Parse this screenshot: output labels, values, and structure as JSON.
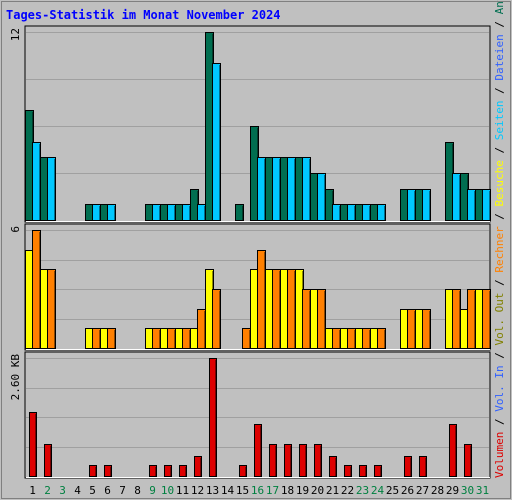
{
  "colors": {
    "background": "#c0c0c0",
    "grid": "#a0a0a0",
    "frame_dark": "#000000",
    "anfragen": "#006e50",
    "dateien": "#00c8ff",
    "seiten": "#00c8ff",
    "besuche": "#ffff00",
    "rechner": "#ff8000",
    "volumen": "#dd0000",
    "weekend_label": "#008040",
    "weekday_label": "#000000",
    "slash": "#000000",
    "vol_in": "#3060ff",
    "vol_out": "#808000"
  },
  "chart_data": {
    "type": "bar",
    "title": "Tages-Statistik im Monat November 2024",
    "categories": [
      "1",
      "2",
      "3",
      "4",
      "5",
      "6",
      "7",
      "8",
      "9",
      "10",
      "11",
      "12",
      "13",
      "14",
      "15",
      "16",
      "17",
      "18",
      "19",
      "20",
      "21",
      "22",
      "23",
      "24",
      "25",
      "26",
      "27",
      "28",
      "29",
      "30",
      "31"
    ],
    "weekend_days": [
      "2",
      "3",
      "9",
      "10",
      "16",
      "17",
      "23",
      "24",
      "30",
      "31"
    ],
    "panels": [
      {
        "id": "requests",
        "ymax_label": "12",
        "ylim": [
          0,
          12
        ],
        "series": [
          {
            "name": "Anfragen",
            "color_key": "anfragen",
            "values": [
              7,
              4,
              0,
              0,
              1,
              1,
              0,
              0,
              1,
              1,
              1,
              2,
              12,
              0,
              1,
              6,
              4,
              4,
              4,
              3,
              2,
              1,
              1,
              1,
              0,
              2,
              2,
              0,
              5,
              3,
              2
            ]
          },
          {
            "name": "Dateien",
            "color_key": "dateien",
            "values": [
              5,
              4,
              0,
              0,
              1,
              1,
              0,
              0,
              1,
              1,
              1,
              1,
              10,
              0,
              0,
              4,
              4,
              4,
              4,
              3,
              1,
              1,
              1,
              1,
              0,
              2,
              2,
              0,
              3,
              2,
              2
            ]
          }
        ]
      },
      {
        "id": "visits",
        "ymax_label": "6",
        "ylim": [
          0,
          6
        ],
        "series": [
          {
            "name": "Besuche",
            "color_key": "besuche",
            "values": [
              5,
              4,
              0,
              0,
              1,
              1,
              0,
              0,
              1,
              1,
              1,
              1,
              4,
              0,
              0,
              4,
              4,
              4,
              4,
              3,
              1,
              1,
              1,
              1,
              0,
              2,
              2,
              0,
              3,
              2,
              3
            ]
          },
          {
            "name": "Rechner",
            "color_key": "rechner",
            "values": [
              6,
              4,
              0,
              0,
              1,
              1,
              0,
              0,
              1,
              1,
              1,
              2,
              3,
              0,
              1,
              5,
              4,
              4,
              3,
              3,
              1,
              1,
              1,
              1,
              0,
              2,
              2,
              0,
              3,
              3,
              3
            ]
          }
        ]
      },
      {
        "id": "volume",
        "ymax_label": "2.60 KB",
        "ylim": [
          0,
          2.6
        ],
        "series": [
          {
            "name": "Volumen",
            "color_key": "volumen",
            "values": [
              1.4,
              0.7,
              0,
              0,
              0.25,
              0.25,
              0,
              0,
              0.25,
              0.25,
              0.25,
              0.45,
              2.6,
              0,
              0.25,
              1.15,
              0.7,
              0.7,
              0.7,
              0.7,
              0.45,
              0.25,
              0.25,
              0.25,
              0,
              0.45,
              0.45,
              0,
              1.15,
              0.7,
              0
            ]
          }
        ]
      }
    ],
    "right_legend": [
      {
        "text": "Volumen",
        "color_key": "volumen"
      },
      {
        "text": " / ",
        "color_key": "slash"
      },
      {
        "text": "Vol. In",
        "color_key": "vol_in"
      },
      {
        "text": " / ",
        "color_key": "slash"
      },
      {
        "text": "Vol. Out",
        "color_key": "vol_out"
      },
      {
        "text": " / ",
        "color_key": "slash"
      },
      {
        "text": "Rechner",
        "color_key": "rechner"
      },
      {
        "text": " / ",
        "color_key": "slash"
      },
      {
        "text": "Besuche",
        "color_key": "besuche"
      },
      {
        "text": " / ",
        "color_key": "slash"
      },
      {
        "text": "Seiten",
        "color_key": "seiten"
      },
      {
        "text": " / ",
        "color_key": "slash"
      },
      {
        "text": "Dateien",
        "color_key": "vol_in"
      },
      {
        "text": " / ",
        "color_key": "slash"
      },
      {
        "text": "Anfragen",
        "color_key": "anfragen"
      }
    ]
  }
}
